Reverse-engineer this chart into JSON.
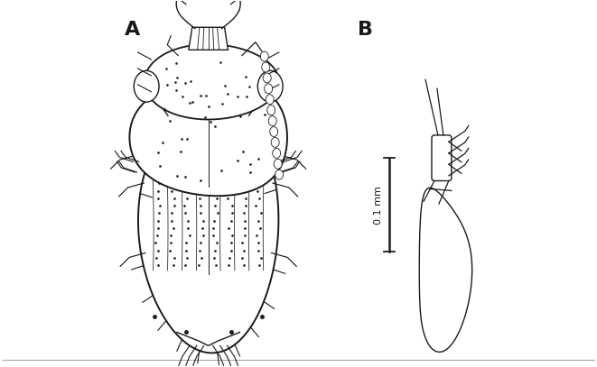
{
  "background_color": "#ffffff",
  "label_A": "A",
  "label_B": "B",
  "scale_bar_label": "0.1 mm",
  "fig_width": 6.61,
  "fig_height": 4.07,
  "line_color": "#1a1a1a",
  "line_width": 1.0,
  "border_color": "#aaaaaa"
}
